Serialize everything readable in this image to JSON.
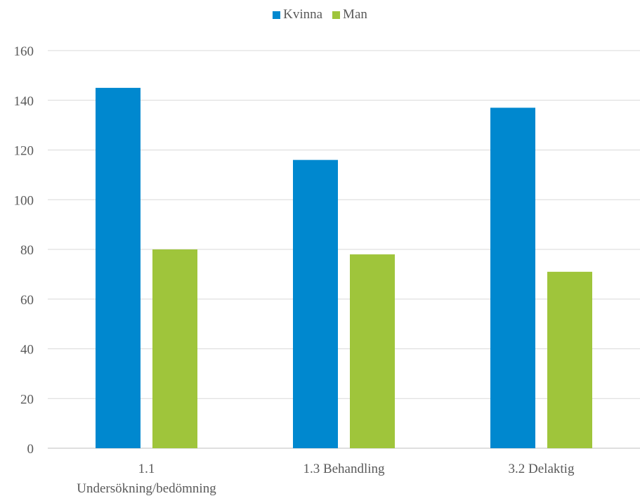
{
  "chart_data": {
    "type": "bar",
    "title": "",
    "xlabel": "",
    "ylabel": "",
    "categories": [
      "1.1 Undersökning/bedömning",
      "1.3 Behandling",
      "3.2 Delaktig"
    ],
    "category_label_lines": [
      [
        "1.1",
        "Undersökning/bedömning"
      ],
      [
        "1.3 Behandling"
      ],
      [
        "3.2 Delaktig"
      ]
    ],
    "series": [
      {
        "name": "Kvinna",
        "values": [
          145,
          116,
          137
        ],
        "color": "#0088cf"
      },
      {
        "name": "Man",
        "values": [
          80,
          78,
          71
        ],
        "color": "#9fc53b"
      }
    ],
    "ylim": [
      0,
      160
    ],
    "yticks": [
      0,
      20,
      40,
      60,
      80,
      100,
      120,
      140,
      160
    ],
    "grid": true,
    "legend_position": "top-center"
  }
}
